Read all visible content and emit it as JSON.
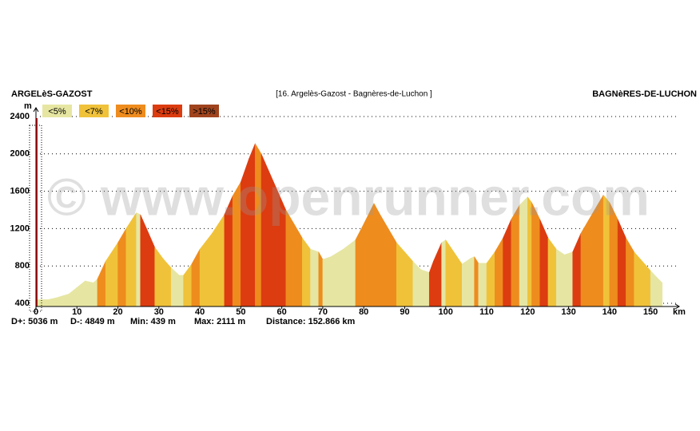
{
  "chart_data": {
    "type": "elevation-profile",
    "start_name": "ARGELèS-GAZOST",
    "title": "[16. Argelès-Gazost - Bagnères-de-Luchon ]",
    "end_name": "BAGNèRES-DE-LUCHON",
    "watermark": "© www.openrunner.com",
    "y_label": "m",
    "x_label": "km",
    "legend": [
      {
        "label": "<5%",
        "max": 5,
        "color": "#e6e6a2"
      },
      {
        "label": "<7%",
        "max": 7,
        "color": "#f0c23a"
      },
      {
        "label": "<10%",
        "max": 10,
        "color": "#ee8c1e"
      },
      {
        "label": "<15%",
        "max": 15,
        "color": "#dc3c10"
      },
      {
        "label": ">15%",
        "color": "#a0441e"
      }
    ],
    "x": [
      0,
      3,
      5,
      8,
      10,
      12,
      14,
      15,
      17,
      20,
      22,
      24.5,
      25.5,
      27,
      29,
      31,
      33,
      35,
      36,
      38,
      40,
      43,
      46,
      48,
      50,
      52,
      53.5,
      55,
      57,
      59,
      61,
      63,
      65,
      67,
      69,
      70,
      72,
      75,
      78,
      80,
      82.5,
      84,
      86,
      88,
      90,
      92,
      94,
      96,
      97,
      99,
      100,
      102,
      104,
      106,
      107,
      108,
      110,
      112,
      114,
      116,
      118,
      120,
      121,
      123,
      125,
      127,
      129,
      131,
      133,
      135,
      137,
      138.5,
      140,
      142,
      144,
      146,
      148,
      150,
      151.5,
      152.866
    ],
    "values": [
      439,
      440,
      460,
      500,
      570,
      640,
      620,
      660,
      850,
      1050,
      1200,
      1370,
      1350,
      1200,
      1000,
      880,
      780,
      700,
      700,
      820,
      980,
      1150,
      1350,
      1550,
      1700,
      1950,
      2111,
      2000,
      1800,
      1600,
      1400,
      1250,
      1100,
      980,
      950,
      870,
      900,
      980,
      1080,
      1250,
      1470,
      1350,
      1200,
      1050,
      950,
      850,
      760,
      730,
      850,
      1050,
      1080,
      950,
      820,
      880,
      900,
      830,
      830,
      950,
      1100,
      1300,
      1450,
      1540,
      1480,
      1300,
      1100,
      980,
      920,
      950,
      1150,
      1300,
      1450,
      1560,
      1480,
      1300,
      1100,
      950,
      850,
      750,
      680,
      620
    ],
    "xlim": [
      0,
      157
    ],
    "ylim": [
      366,
      2400
    ],
    "xticks": [
      0,
      10,
      20,
      30,
      40,
      50,
      60,
      70,
      80,
      90,
      100,
      110,
      120,
      130,
      140,
      150
    ],
    "yticks": [
      400,
      800,
      1200,
      1600,
      2000,
      2400
    ],
    "grid": true,
    "stats": [
      "D+: 5036 m",
      "D-: 4849 m",
      "Min: 439 m",
      "Max: 2111 m",
      "Distance: 152.866 km"
    ]
  }
}
